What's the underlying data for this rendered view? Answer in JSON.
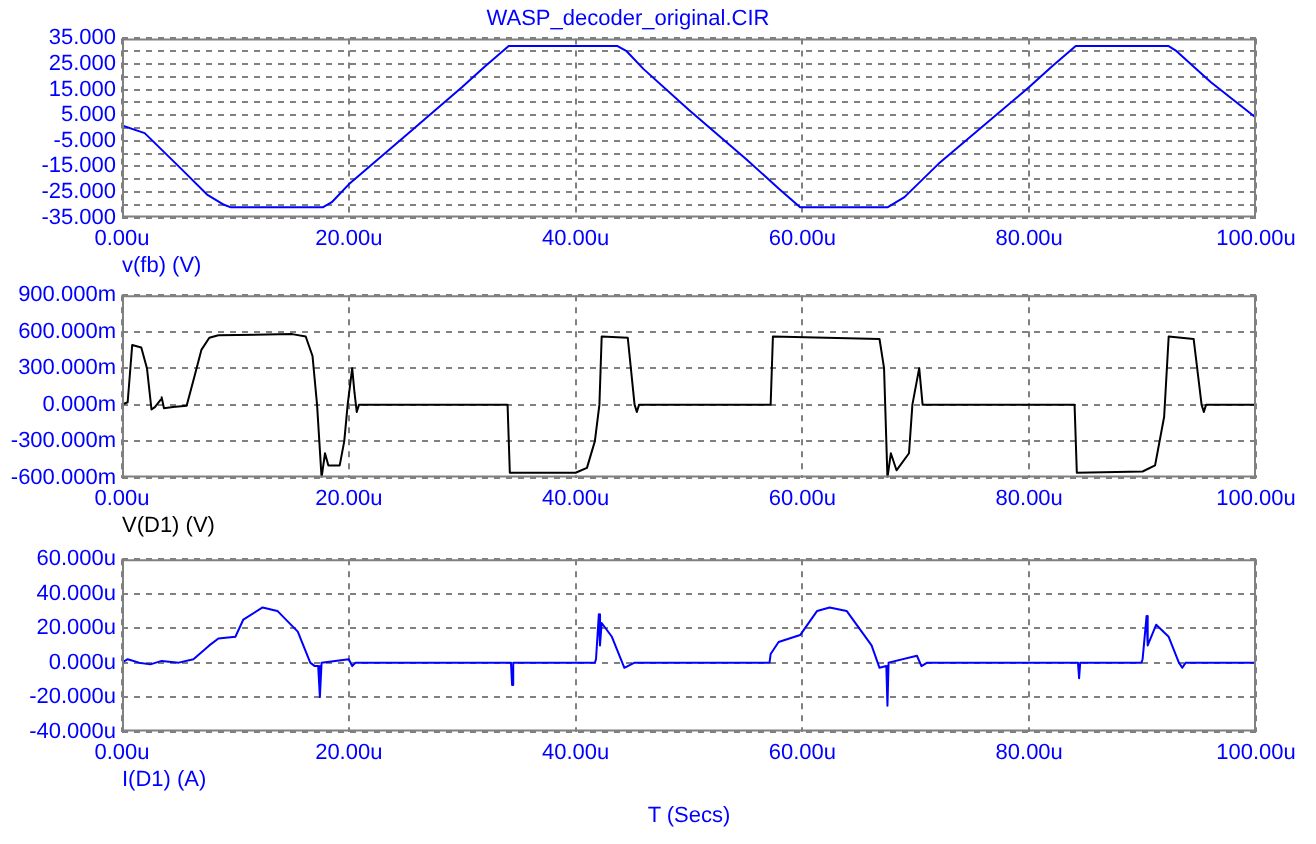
{
  "chart_data": [
    {
      "type": "line",
      "title": "WASP_decoder_original.CIR",
      "x": [
        0,
        2,
        5,
        7.5,
        9,
        9.6,
        17.7,
        18.5,
        20,
        25,
        30,
        32,
        34.1,
        43.7,
        44.5,
        46,
        50,
        55,
        58,
        59.8,
        67.5,
        69,
        72,
        80,
        82,
        84.1,
        92.3,
        93,
        96,
        100
      ],
      "series": [
        {
          "name": "v(fb) (V)",
          "color": "#0000ff",
          "values": [
            1,
            -2,
            -15,
            -26,
            -30,
            -31,
            -31,
            -29,
            -22,
            -3,
            16,
            24,
            32,
            32,
            30,
            23,
            7,
            -12,
            -24,
            -31,
            -31,
            -27,
            -14,
            16,
            24,
            32,
            32,
            30,
            18,
            4
          ]
        }
      ],
      "xlim": [
        0,
        100
      ],
      "xticks": [
        {
          "value": 0,
          "label": "0.00u"
        },
        {
          "value": 20,
          "label": "20.00u"
        },
        {
          "value": 40,
          "label": "40.00u"
        },
        {
          "value": 60,
          "label": "60.00u"
        },
        {
          "value": 80,
          "label": "80.00u"
        },
        {
          "value": 100,
          "label": "100.00u"
        }
      ],
      "ylim": [
        -35,
        35
      ],
      "yticks": [
        {
          "value": -35,
          "label": "-35.000"
        },
        {
          "value": -30,
          "label": null
        },
        {
          "value": -25,
          "label": "-25.000"
        },
        {
          "value": -20,
          "label": null
        },
        {
          "value": -15,
          "label": "-15.000"
        },
        {
          "value": -10,
          "label": null
        },
        {
          "value": -5,
          "label": "-5.000"
        },
        {
          "value": 0,
          "label": null
        },
        {
          "value": 5,
          "label": "5.000"
        },
        {
          "value": 10,
          "label": null
        },
        {
          "value": 15,
          "label": "15.000"
        },
        {
          "value": 20,
          "label": null
        },
        {
          "value": 25,
          "label": "25.000"
        },
        {
          "value": 30,
          "label": null
        },
        {
          "value": 35,
          "label": "35.000"
        }
      ],
      "grid": true,
      "legend": "bottom left"
    },
    {
      "type": "line",
      "x": [
        0,
        0.5,
        0.9,
        1.7,
        2.2,
        2.6,
        2.9,
        3.4,
        3.5,
        3.7,
        4.5,
        5.7,
        6.3,
        7.0,
        7.7,
        8.5,
        15,
        16.2,
        16.8,
        17.2,
        17.6,
        17.9,
        18.2,
        19.2,
        19.6,
        19.9,
        20.3,
        20.5,
        20.7,
        20.9,
        34.0,
        34.2,
        40,
        41,
        41.7,
        42.1,
        42.3,
        44.6,
        45.2,
        45.4,
        45.6,
        57.2,
        57.4,
        66.8,
        67.2,
        67.5,
        67.8,
        68.3,
        69.4,
        69.7,
        70.3,
        70.6,
        84.0,
        84.2,
        90,
        91.1,
        91.9,
        92.3,
        94.5,
        95.2,
        95.4,
        95.6,
        100
      ],
      "series": [
        {
          "name": "V(D1) (V)",
          "color": "#000000",
          "values": [
            0,
            20,
            490,
            470,
            300,
            -40,
            -20,
            40,
            60,
            -30,
            -20,
            -10,
            200,
            450,
            550,
            570,
            580,
            560,
            400,
            0,
            -600,
            -400,
            -500,
            -500,
            -300,
            0,
            300,
            100,
            -60,
            0,
            0,
            -560,
            -560,
            -520,
            -300,
            0,
            560,
            550,
            0,
            -60,
            0,
            0,
            560,
            540,
            300,
            -600,
            -400,
            -540,
            -400,
            0,
            300,
            0,
            0,
            -560,
            -550,
            -500,
            -100,
            560,
            540,
            0,
            -60,
            0,
            0
          ]
        }
      ],
      "xlim": [
        0,
        100
      ],
      "xticks": [
        {
          "value": 0,
          "label": "0.00u"
        },
        {
          "value": 20,
          "label": "20.00u"
        },
        {
          "value": 40,
          "label": "40.00u"
        },
        {
          "value": 60,
          "label": "60.00u"
        },
        {
          "value": 80,
          "label": "80.00u"
        },
        {
          "value": 100,
          "label": "100.00u"
        }
      ],
      "ylim": [
        -600,
        900
      ],
      "yticks": [
        {
          "value": -600,
          "label": "-600.000m"
        },
        {
          "value": -300,
          "label": "-300.000m"
        },
        {
          "value": 0,
          "label": "0.000m"
        },
        {
          "value": 300,
          "label": "300.000m"
        },
        {
          "value": 600,
          "label": "600.000m"
        },
        {
          "value": 900,
          "label": "900.000m"
        }
      ],
      "grid": true,
      "legend": "bottom left"
    },
    {
      "type": "line",
      "xlabel": "T (Secs)",
      "x": [
        0,
        0.5,
        1.5,
        2.5,
        3.5,
        5,
        6.3,
        7.7,
        8.5,
        10,
        10.7,
        12.4,
        13.7,
        15.5,
        16.6,
        17.0,
        17.3,
        17.45,
        17.6,
        20,
        20.3,
        20.6,
        34.3,
        34.4,
        34.5,
        41.7,
        41.8,
        42.05,
        42.15,
        42.3,
        43.2,
        44.3,
        45.2,
        45.5,
        57.1,
        57.2,
        57.9,
        59.8,
        61.3,
        62.4,
        63.9,
        66.1,
        66.8,
        67.4,
        67.5,
        67.6,
        70.1,
        70.5,
        71,
        84.3,
        84.4,
        84.5,
        89.9,
        90,
        90.35,
        90.45,
        91.2,
        92.3,
        93.2,
        93.5,
        93.8,
        100
      ],
      "series": [
        {
          "name": "I(D1) (A)",
          "color": "#0000ff",
          "values": [
            0,
            2,
            0,
            -1,
            1,
            0,
            2,
            10,
            14,
            15,
            25,
            32,
            30,
            18,
            0,
            -2,
            -2,
            -20,
            0,
            2,
            -2,
            0,
            0,
            -13,
            0,
            0,
            2,
            28,
            10,
            23,
            15,
            -3,
            0,
            0,
            0,
            5,
            12,
            16,
            30,
            32,
            30,
            10,
            -3,
            -2,
            -25,
            0,
            4,
            -2,
            0,
            0,
            -9,
            0,
            0,
            2,
            27,
            10,
            22,
            15,
            0,
            -3,
            0,
            0
          ]
        }
      ],
      "xlim": [
        0,
        100
      ],
      "xticks": [
        {
          "value": 0,
          "label": "0.00u"
        },
        {
          "value": 20,
          "label": "20.00u"
        },
        {
          "value": 40,
          "label": "40.00u"
        },
        {
          "value": 60,
          "label": "60.00u"
        },
        {
          "value": 80,
          "label": "80.00u"
        },
        {
          "value": 100,
          "label": "100.00u"
        }
      ],
      "ylim": [
        -40,
        60
      ],
      "yticks": [
        {
          "value": -40,
          "label": "-40.000u"
        },
        {
          "value": -20,
          "label": "-20.000u"
        },
        {
          "value": 0,
          "label": "0.000u"
        },
        {
          "value": 20,
          "label": "20.000u"
        },
        {
          "value": 40,
          "label": "40.000u"
        },
        {
          "value": 60,
          "label": "60.000u"
        }
      ],
      "grid": true,
      "legend": "bottom left"
    }
  ]
}
